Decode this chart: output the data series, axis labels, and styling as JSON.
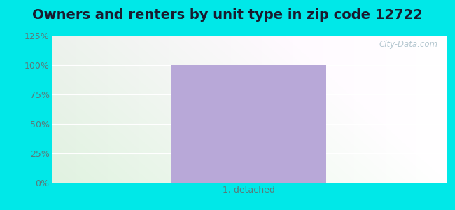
{
  "title": "Owners and renters by unit type in zip code 12722",
  "categories": [
    "1, detached"
  ],
  "values": [
    100
  ],
  "bar_color": "#b8a8d8",
  "bar_width": 0.55,
  "ylim": [
    0,
    125
  ],
  "yticks": [
    0,
    25,
    50,
    75,
    100,
    125
  ],
  "ytick_labels": [
    "0%",
    "25%",
    "50%",
    "75%",
    "100%",
    "125%"
  ],
  "title_fontsize": 14,
  "outer_bg_color": "#00e8e8",
  "watermark": "City-Data.com",
  "tick_color": "#5a7a7a",
  "title_color": "#1a1a2e"
}
